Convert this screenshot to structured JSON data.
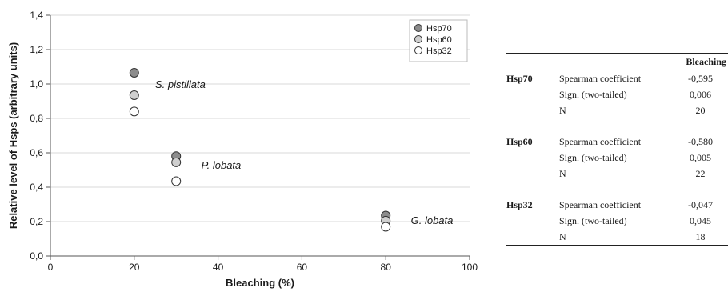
{
  "chart_data": {
    "type": "scatter",
    "xlabel": "Bleaching (%)",
    "ylabel": "Relative level of Hsps (arbitrary units)",
    "xlim": [
      0,
      100
    ],
    "ylim": [
      0,
      1.4
    ],
    "x_ticks": [
      "0",
      "20",
      "40",
      "60",
      "80",
      "100"
    ],
    "y_ticks": [
      "0,0",
      "0,2",
      "0,4",
      "0,6",
      "0,8",
      "1,0",
      "1,2",
      "1,4"
    ],
    "grid": "horizontal",
    "legend_position": "top-right",
    "series": [
      {
        "name": "Hsp70",
        "color": "#8c8c8c",
        "x": [
          20,
          30,
          80
        ],
        "y": [
          1.065,
          0.58,
          0.235
        ]
      },
      {
        "name": "Hsp60",
        "color": "#cfcfcf",
        "x": [
          20,
          30,
          80
        ],
        "y": [
          0.935,
          0.545,
          0.205
        ]
      },
      {
        "name": "Hsp32",
        "color": "#ffffff",
        "x": [
          20,
          30,
          80
        ],
        "y": [
          0.84,
          0.435,
          0.17
        ]
      }
    ],
    "annotations": [
      {
        "text": "S. pistillata",
        "x": 25,
        "y": 1.0
      },
      {
        "text": "P. lobata",
        "x": 36,
        "y": 0.53
      },
      {
        "text": "G. lobata",
        "x": 86,
        "y": 0.21
      }
    ]
  },
  "table": {
    "header": "Bleaching",
    "groups": [
      {
        "protein": "Hsp70",
        "rows": [
          {
            "stat": "Spearman coefficient",
            "value": "-0,595"
          },
          {
            "stat": "Sign. (two-tailed)",
            "value": "0,006"
          },
          {
            "stat": "N",
            "value": "20"
          }
        ]
      },
      {
        "protein": "Hsp60",
        "rows": [
          {
            "stat": "Spearman coefficient",
            "value": "-0,580"
          },
          {
            "stat": "Sign. (two-tailed)",
            "value": "0,005"
          },
          {
            "stat": "N",
            "value": "22"
          }
        ]
      },
      {
        "protein": "Hsp32",
        "rows": [
          {
            "stat": "Spearman coefficient",
            "value": "-0,047"
          },
          {
            "stat": "Sign. (two-tailed)",
            "value": "0,045"
          },
          {
            "stat": "N",
            "value": "18"
          }
        ]
      }
    ]
  }
}
